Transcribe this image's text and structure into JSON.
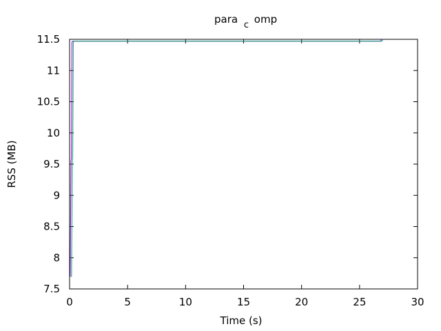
{
  "chart_data": {
    "type": "line",
    "title_main": "para",
    "title_sub": "c",
    "title_rest": "omp",
    "xlabel": "Time (s)",
    "ylabel": "RSS (MB)",
    "xlim": [
      0,
      30
    ],
    "ylim": [
      7.5,
      11.5
    ],
    "x_ticks": [
      "0",
      "5",
      "10",
      "15",
      "20",
      "25",
      "30"
    ],
    "y_ticks": [
      "7.5",
      "8",
      "8.5",
      "9",
      "9.5",
      "10",
      "10.5",
      "11",
      "11.5"
    ],
    "grid": false,
    "legend": "none",
    "series": [
      {
        "color": "#9400d3",
        "x": [
          0.0,
          0.05,
          0.12,
          0.15,
          0.2,
          0.25,
          26.8,
          26.9
        ],
        "y": [
          7.7,
          7.7,
          9.55,
          9.6,
          11.45,
          11.47,
          11.47,
          11.5
        ]
      },
      {
        "color": "#009e73",
        "x": [
          0.0,
          0.05,
          0.12,
          0.15,
          0.2,
          0.25,
          26.8,
          26.9
        ],
        "y": [
          7.7,
          7.7,
          9.55,
          9.6,
          11.45,
          11.47,
          11.47,
          11.5
        ]
      }
    ]
  }
}
